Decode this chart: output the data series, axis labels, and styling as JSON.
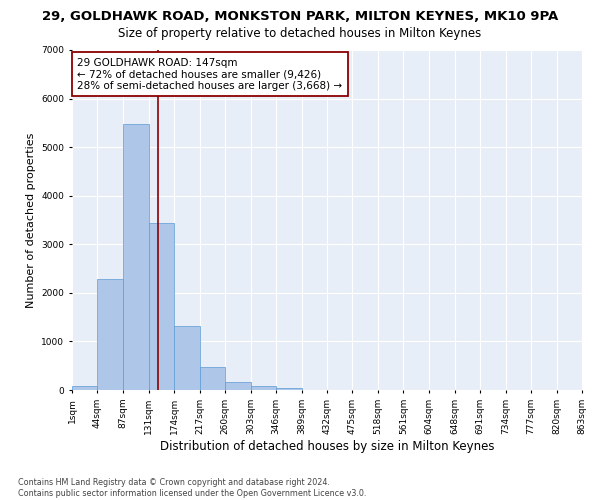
{
  "title1": "29, GOLDHAWK ROAD, MONKSTON PARK, MILTON KEYNES, MK10 9PA",
  "title2": "Size of property relative to detached houses in Milton Keynes",
  "xlabel": "Distribution of detached houses by size in Milton Keynes",
  "ylabel": "Number of detached properties",
  "footnote": "Contains HM Land Registry data © Crown copyright and database right 2024.\nContains public sector information licensed under the Open Government Licence v3.0.",
  "bar_color": "#aec6e8",
  "bar_edge_color": "#5b9bd5",
  "background_color": "#e8eef7",
  "fig_background_color": "#ffffff",
  "grid_color": "#ffffff",
  "bin_edges": [
    1,
    44,
    87,
    131,
    174,
    217,
    260,
    303,
    346,
    389,
    432,
    475,
    518,
    561,
    604,
    648,
    691,
    734,
    777,
    820,
    863
  ],
  "bin_labels": [
    "1sqm",
    "44sqm",
    "87sqm",
    "131sqm",
    "174sqm",
    "217sqm",
    "260sqm",
    "303sqm",
    "346sqm",
    "389sqm",
    "432sqm",
    "475sqm",
    "518sqm",
    "561sqm",
    "604sqm",
    "648sqm",
    "691sqm",
    "734sqm",
    "777sqm",
    "820sqm",
    "863sqm"
  ],
  "bar_heights": [
    80,
    2280,
    5480,
    3440,
    1320,
    470,
    155,
    80,
    40,
    0,
    0,
    0,
    0,
    0,
    0,
    0,
    0,
    0,
    0,
    0
  ],
  "vline_x": 147,
  "vline_color": "#8b0000",
  "annotation_text": "29 GOLDHAWK ROAD: 147sqm\n← 72% of detached houses are smaller (9,426)\n28% of semi-detached houses are larger (3,668) →",
  "annotation_box_color": "#ffffff",
  "annotation_box_edge": "#8b0000",
  "ylim": [
    0,
    7000
  ],
  "yticks": [
    0,
    1000,
    2000,
    3000,
    4000,
    5000,
    6000,
    7000
  ],
  "title1_fontsize": 9.5,
  "title2_fontsize": 8.5,
  "annotation_fontsize": 7.5,
  "ylabel_fontsize": 8,
  "xlabel_fontsize": 8.5,
  "footnote_fontsize": 5.8,
  "tick_fontsize": 6.5
}
